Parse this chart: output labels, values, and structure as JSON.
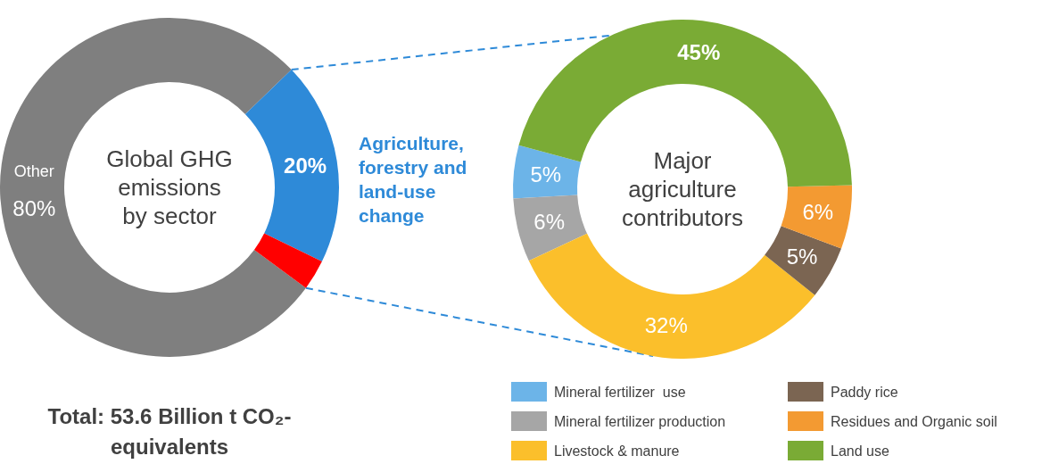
{
  "chart_data": [
    {
      "type": "donut",
      "title": "Global GHG emissions by sector",
      "categories": [
        "Other",
        "Agriculture, forestry and land-use change",
        null
      ],
      "values": [
        80,
        20,
        3
      ],
      "colors": [
        "#7f7f7f",
        "#2e8ad8",
        "#ff0000"
      ],
      "value_labels": [
        "80%",
        "20%",
        null
      ],
      "legend": false,
      "annotations": [
        "Total: 53.6 Billion t CO₂-equivalents"
      ]
    },
    {
      "type": "donut",
      "title": "Major agriculture contributors",
      "categories": [
        "Mineral fertilizer  use",
        "Mineral fertilizer production",
        "Livestock & manure",
        "Paddy rice",
        "Residues and Organic soil",
        "Land use"
      ],
      "values": [
        5,
        6,
        32,
        5,
        6,
        45
      ],
      "colors": [
        "#6cb4e8",
        "#a6a6a6",
        "#fbbf2b",
        "#7b6552",
        "#f39a32",
        "#7aab35"
      ],
      "value_labels": [
        "5%",
        "6%",
        "32%",
        "5%",
        "6%",
        "45%"
      ],
      "legend": "bottom"
    }
  ]
}
